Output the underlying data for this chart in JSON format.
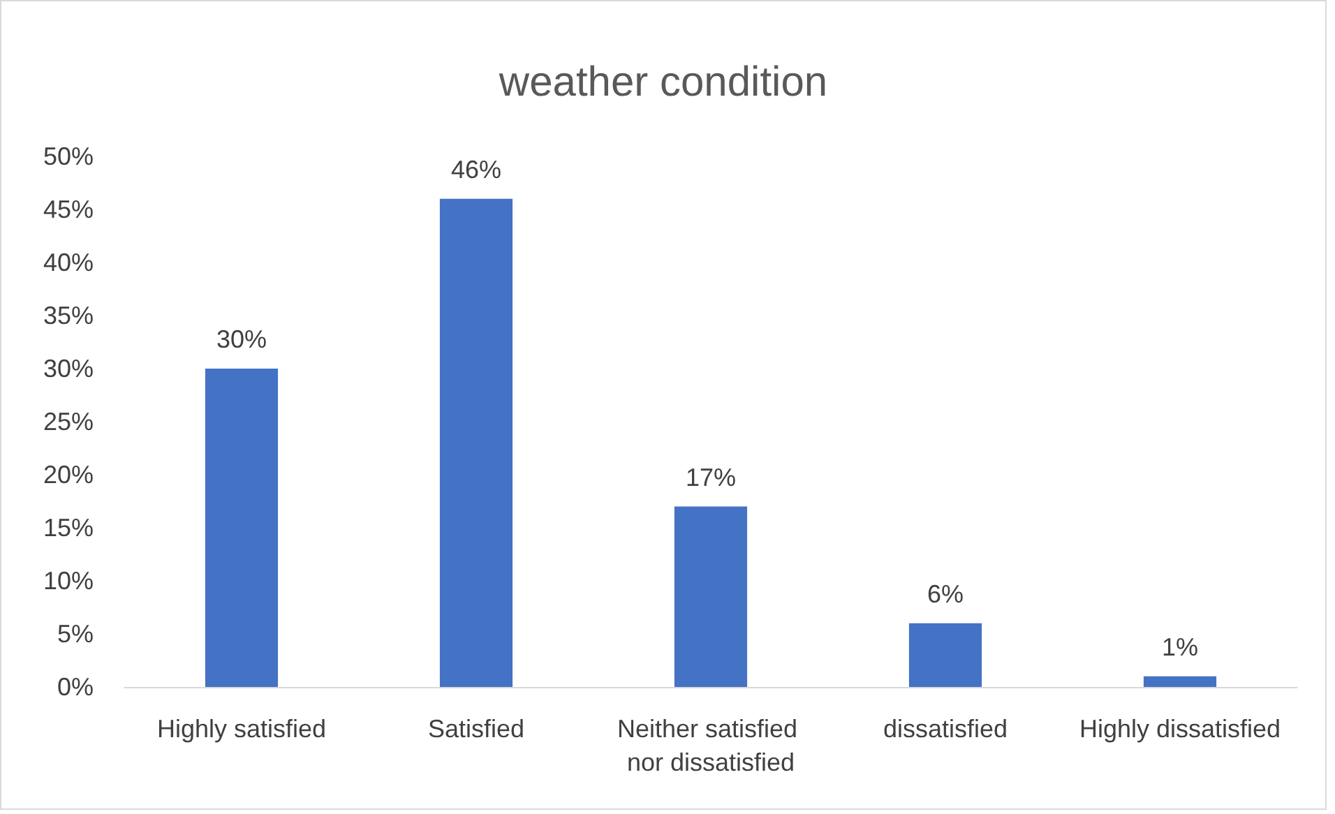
{
  "chart_data": {
    "type": "bar",
    "title": "weather condition",
    "categories": [
      "Highly satisfied",
      "Satisfied",
      "Neither satisfied nor dissatisfied",
      "dissatisfied",
      "Highly dissatisfied"
    ],
    "values": [
      30,
      46,
      17,
      6,
      1
    ],
    "value_labels": [
      "30%",
      "46%",
      "17%",
      "6%",
      "1%"
    ],
    "color": "#4472c4",
    "ylim": [
      0,
      50
    ],
    "yticks": [
      {
        "value": 0,
        "label": "0%"
      },
      {
        "value": 5,
        "label": "5%"
      },
      {
        "value": 10,
        "label": "10%"
      },
      {
        "value": 15,
        "label": "15%"
      },
      {
        "value": 20,
        "label": "20%"
      },
      {
        "value": 25,
        "label": "25%"
      },
      {
        "value": 30,
        "label": "30%"
      },
      {
        "value": 35,
        "label": "35%"
      },
      {
        "value": 40,
        "label": "40%"
      },
      {
        "value": 45,
        "label": "45%"
      },
      {
        "value": 50,
        "label": "50%"
      }
    ],
    "grid": false
  }
}
